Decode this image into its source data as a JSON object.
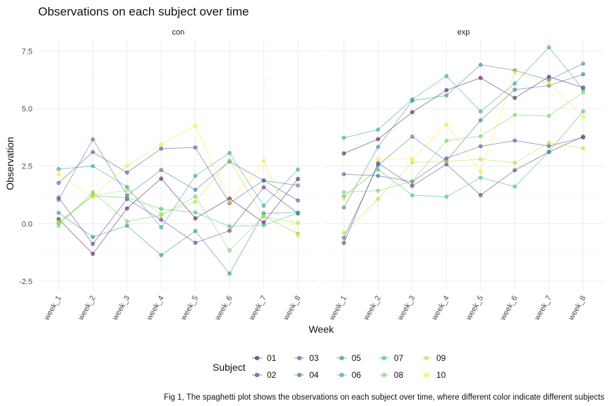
{
  "chart_data": {
    "type": "line",
    "title": "Observations on each subject over time",
    "xlabel": "Week",
    "ylabel": "Observation",
    "categories": [
      "week_1",
      "week_2",
      "week_3",
      "week_4",
      "week_5",
      "week_6",
      "week_7",
      "week_8"
    ],
    "ylim": [
      -2.9,
      8.0
    ],
    "yticks": [
      -2.5,
      0.0,
      2.5,
      5.0,
      7.5
    ],
    "ytick_labels": [
      "-2.5",
      "0.0",
      "2.5",
      "5.0",
      "7.5"
    ],
    "grid": true,
    "legend": {
      "title": "Subject",
      "position": "bottom",
      "items": [
        "01",
        "02",
        "03",
        "04",
        "05",
        "06",
        "07",
        "08",
        "09",
        "10"
      ]
    },
    "series_colors": {
      "01": "#440154",
      "02": "#482878",
      "03": "#3E4A89",
      "04": "#31688E",
      "05": "#26828E",
      "06": "#1F9E89",
      "07": "#35B779",
      "08": "#6DCD59",
      "09": "#B4DE2C",
      "10": "#FDE725"
    },
    "panels": [
      {
        "label": "con",
        "series": [
          {
            "name": "01",
            "values": [
              0.2,
              -1.31,
              0.66,
              1.96,
              0.23,
              1.09,
              0.05,
              1.94
            ]
          },
          {
            "name": "02",
            "values": [
              1.13,
              -0.88,
              1.07,
              0.17,
              -0.83,
              -0.31,
              1.58,
              0.44
            ]
          },
          {
            "name": "03",
            "values": [
              1.77,
              3.11,
              2.22,
              3.26,
              3.31,
              0.89,
              1.88,
              1.01
            ]
          },
          {
            "name": "04",
            "values": [
              1.04,
              3.66,
              1.22,
              2.33,
              1.47,
              2.7,
              1.87,
              1.66
            ]
          },
          {
            "name": "05",
            "values": [
              0.47,
              -0.58,
              -0.09,
              -1.37,
              -0.32,
              -2.17,
              0.45,
              0.48
            ]
          },
          {
            "name": "06",
            "values": [
              2.37,
              2.5,
              1.59,
              -0.16,
              2.08,
              3.07,
              0.78,
              2.35
            ]
          },
          {
            "name": "07",
            "values": [
              0.03,
              1.21,
              1.13,
              0.64,
              0.49,
              -0.12,
              -0.07,
              0.46
            ]
          },
          {
            "name": "08",
            "values": [
              -0.09,
              1.37,
              0.1,
              0.36,
              1.18,
              -1.16,
              0.33,
              -0.44
            ]
          },
          {
            "name": "09",
            "values": [
              0.08,
              1.24,
              1.44,
              0.41,
              0.95,
              2.75,
              0.3,
              0.03
            ]
          },
          {
            "name": "10",
            "values": [
              2.14,
              1.15,
              2.52,
              3.44,
              4.26,
              0.97,
              2.73,
              -0.53
            ]
          }
        ]
      },
      {
        "label": "exp",
        "series": [
          {
            "name": "01",
            "values": [
              3.05,
              3.67,
              4.84,
              5.8,
              6.33,
              5.46,
              6.38,
              5.91
            ]
          },
          {
            "name": "02",
            "values": [
              -0.84,
              2.63,
              1.64,
              2.58,
              1.24,
              2.32,
              3.11,
              3.78
            ]
          },
          {
            "name": "03",
            "values": [
              2.15,
              2.08,
              1.82,
              2.84,
              3.36,
              3.61,
              3.37,
              3.74
            ]
          },
          {
            "name": "04",
            "values": [
              -0.62,
              2.54,
              3.78,
              2.73,
              4.49,
              5.82,
              6.0,
              6.49
            ]
          },
          {
            "name": "05",
            "values": [
              0.7,
              3.33,
              5.34,
              5.57,
              6.9,
              6.66,
              6.24,
              6.95
            ]
          },
          {
            "name": "06",
            "values": [
              3.73,
              4.08,
              5.4,
              6.41,
              4.87,
              6.09,
              7.66,
              5.83
            ]
          },
          {
            "name": "07",
            "values": [
              1.18,
              2.35,
              1.23,
              1.17,
              2.0,
              1.61,
              3.13,
              4.88
            ]
          },
          {
            "name": "08",
            "values": [
              1.37,
              1.43,
              1.84,
              3.6,
              3.8,
              4.72,
              4.68,
              5.7
            ]
          },
          {
            "name": "09",
            "values": [
              -0.4,
              1.08,
              2.66,
              2.7,
              2.8,
              2.64,
              3.51,
              3.27
            ]
          },
          {
            "name": "10",
            "values": [
              1.09,
              2.8,
              2.8,
              4.3,
              2.25,
              6.57,
              6.09,
              4.64
            ]
          }
        ]
      }
    ]
  },
  "caption": "Fig 1, The spaghetti plot shows the observations on each subject over time, where different color indicate different subjects"
}
